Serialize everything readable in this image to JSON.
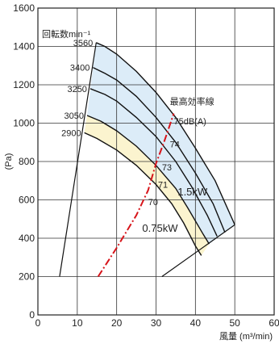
{
  "chart_data": {
    "type": "line",
    "title": "",
    "xlabel": "風量 (m³/min)",
    "ylabel": "(Pa)",
    "xlim": [
      0,
      60
    ],
    "ylim": [
      0,
      1600
    ],
    "xticks": [
      0,
      10,
      20,
      30,
      40,
      50,
      60
    ],
    "yticks": [
      0,
      200,
      400,
      600,
      800,
      1000,
      1200,
      1400,
      1600
    ],
    "grid": true,
    "colors": {
      "region_15kw": "#dcecf8",
      "region_075kw": "#fbf4cf",
      "curve": "#111111",
      "efficiency_line": "#d7141a"
    },
    "speed_caption": "回転数min⁻¹",
    "speed_curves": [
      {
        "rpm": "3560",
        "points": [
          [
            14.8,
            1420
          ],
          [
            17,
            1400
          ],
          [
            20,
            1360
          ],
          [
            25,
            1270
          ],
          [
            30,
            1160
          ],
          [
            35,
            1030
          ],
          [
            40,
            870
          ],
          [
            45,
            700
          ],
          [
            50,
            470
          ]
        ]
      },
      {
        "rpm": "3400",
        "points": [
          [
            14.0,
            1290
          ],
          [
            17,
            1260
          ],
          [
            20,
            1225
          ],
          [
            25,
            1140
          ],
          [
            30,
            1030
          ],
          [
            35,
            900
          ],
          [
            40,
            740
          ],
          [
            44.5,
            580
          ],
          [
            47.5,
            430
          ]
        ]
      },
      {
        "rpm": "3250",
        "points": [
          [
            13.3,
            1180
          ],
          [
            17,
            1150
          ],
          [
            20,
            1115
          ],
          [
            25,
            1030
          ],
          [
            30,
            930
          ],
          [
            35,
            800
          ],
          [
            39,
            670
          ],
          [
            43,
            520
          ],
          [
            45.5,
            410
          ]
        ]
      },
      {
        "rpm": "3050",
        "points": [
          [
            12.5,
            1040
          ],
          [
            16,
            1010
          ],
          [
            20,
            960
          ],
          [
            25,
            880
          ],
          [
            30,
            780
          ],
          [
            35,
            660
          ],
          [
            38,
            560
          ],
          [
            42,
            420
          ],
          [
            43.5,
            370
          ]
        ]
      },
      {
        "rpm": "2900",
        "points": [
          [
            11.8,
            950
          ],
          [
            15,
            920
          ],
          [
            20,
            860
          ],
          [
            25,
            780
          ],
          [
            30,
            680
          ],
          [
            34,
            580
          ],
          [
            37,
            480
          ],
          [
            40,
            360
          ],
          [
            41.5,
            310
          ]
        ]
      }
    ],
    "boundaries": {
      "left": [
        [
          5.5,
          200
        ],
        [
          14.8,
          1420
        ]
      ],
      "bottom": [
        [
          31.5,
          200
        ],
        [
          50,
          470
        ]
      ]
    },
    "efficiency_line": {
      "label": "最高効率線",
      "points": [
        [
          15.3,
          200
        ],
        [
          20,
          350
        ],
        [
          25,
          520
        ],
        [
          28,
          650
        ],
        [
          30,
          790
        ],
        [
          32,
          900
        ],
        [
          34.5,
          1050
        ]
      ],
      "marks": [
        "75dB(A)",
        "74",
        "73",
        "71",
        "70"
      ]
    },
    "region_labels": [
      "1.5kW",
      "0.75kW"
    ]
  }
}
